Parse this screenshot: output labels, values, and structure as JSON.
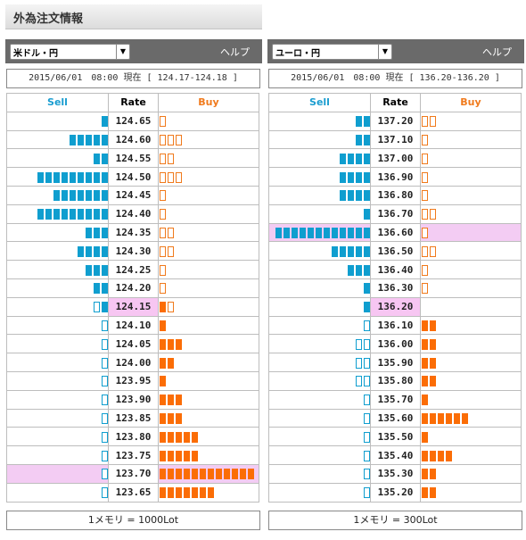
{
  "page_title": "外為注文情報",
  "panels": [
    {
      "pair": "米ドル・円",
      "help": "ヘルプ",
      "status": "2015/06/01　08:00 現在 [ 124.17-124.18 ]",
      "header": {
        "sell": "Sell",
        "rate": "Rate",
        "buy": "Buy"
      },
      "footer": "1メモリ = 1000Lot",
      "current_rate": "124.15",
      "rows": [
        {
          "rate": "124.65",
          "sell": 1,
          "sell_type": "order",
          "buy": 1,
          "buy_type": "order"
        },
        {
          "rate": "124.60",
          "sell": 5,
          "sell_type": "order",
          "buy": 3,
          "buy_type": "order"
        },
        {
          "rate": "124.55",
          "sell": 2,
          "sell_type": "order",
          "buy": 2,
          "buy_type": "order"
        },
        {
          "rate": "124.50",
          "sell": 9,
          "sell_type": "order",
          "buy": 3,
          "buy_type": "order"
        },
        {
          "rate": "124.45",
          "sell": 7,
          "sell_type": "order",
          "buy": 1,
          "buy_type": "order"
        },
        {
          "rate": "124.40",
          "sell": 9,
          "sell_type": "order",
          "buy": 1,
          "buy_type": "order"
        },
        {
          "rate": "124.35",
          "sell": 3,
          "sell_type": "order",
          "buy": 2,
          "buy_type": "order"
        },
        {
          "rate": "124.30",
          "sell": 4,
          "sell_type": "order",
          "buy": 2,
          "buy_type": "order"
        },
        {
          "rate": "124.25",
          "sell": 3,
          "sell_type": "order",
          "buy": 1,
          "buy_type": "order"
        },
        {
          "rate": "124.20",
          "sell": 2,
          "sell_type": "order",
          "buy": 1,
          "buy_type": "order"
        },
        {
          "rate": "124.15",
          "sell": 2,
          "sell_type": "mixed",
          "buy": 2,
          "buy_type": "mixed"
        },
        {
          "rate": "124.10",
          "sell": 1,
          "sell_type": "stop",
          "buy": 1,
          "buy_type": "stop"
        },
        {
          "rate": "124.05",
          "sell": 1,
          "sell_type": "stop",
          "buy": 3,
          "buy_type": "stop"
        },
        {
          "rate": "124.00",
          "sell": 1,
          "sell_type": "stop",
          "buy": 2,
          "buy_type": "stop"
        },
        {
          "rate": "123.95",
          "sell": 1,
          "sell_type": "stop",
          "buy": 1,
          "buy_type": "stop"
        },
        {
          "rate": "123.90",
          "sell": 1,
          "sell_type": "stop",
          "buy": 3,
          "buy_type": "stop"
        },
        {
          "rate": "123.85",
          "sell": 1,
          "sell_type": "stop",
          "buy": 3,
          "buy_type": "stop"
        },
        {
          "rate": "123.80",
          "sell": 1,
          "sell_type": "stop",
          "buy": 5,
          "buy_type": "stop"
        },
        {
          "rate": "123.75",
          "sell": 1,
          "sell_type": "stop",
          "buy": 5,
          "buy_type": "stop"
        },
        {
          "rate": "123.70",
          "sell": 1,
          "sell_type": "stop",
          "buy": 12,
          "buy_type": "stop",
          "highlight": true
        },
        {
          "rate": "123.65",
          "sell": 1,
          "sell_type": "stop",
          "buy": 7,
          "buy_type": "stop"
        }
      ]
    },
    {
      "pair": "ユーロ・円",
      "help": "ヘルプ",
      "status": "2015/06/01　08:00 現在 [ 136.20-136.20 ]",
      "header": {
        "sell": "Sell",
        "rate": "Rate",
        "buy": "Buy"
      },
      "footer": "1メモリ = 300Lot",
      "current_rate": "136.20",
      "rows": [
        {
          "rate": "137.20",
          "sell": 2,
          "sell_type": "order",
          "buy": 2,
          "buy_type": "order"
        },
        {
          "rate": "137.10",
          "sell": 2,
          "sell_type": "order",
          "buy": 1,
          "buy_type": "order"
        },
        {
          "rate": "137.00",
          "sell": 4,
          "sell_type": "order",
          "buy": 1,
          "buy_type": "order"
        },
        {
          "rate": "136.90",
          "sell": 4,
          "sell_type": "order",
          "buy": 1,
          "buy_type": "order"
        },
        {
          "rate": "136.80",
          "sell": 4,
          "sell_type": "order",
          "buy": 1,
          "buy_type": "order"
        },
        {
          "rate": "136.70",
          "sell": 1,
          "sell_type": "order",
          "buy": 2,
          "buy_type": "order"
        },
        {
          "rate": "136.60",
          "sell": 12,
          "sell_type": "order",
          "buy": 1,
          "buy_type": "order",
          "highlight": true
        },
        {
          "rate": "136.50",
          "sell": 5,
          "sell_type": "order",
          "buy": 2,
          "buy_type": "order"
        },
        {
          "rate": "136.40",
          "sell": 3,
          "sell_type": "order",
          "buy": 1,
          "buy_type": "order"
        },
        {
          "rate": "136.30",
          "sell": 1,
          "sell_type": "order",
          "buy": 1,
          "buy_type": "order"
        },
        {
          "rate": "136.20",
          "sell": 1,
          "sell_type": "order",
          "buy": 0,
          "buy_type": "stop"
        },
        {
          "rate": "136.10",
          "sell": 1,
          "sell_type": "stop",
          "buy": 2,
          "buy_type": "stop"
        },
        {
          "rate": "136.00",
          "sell": 2,
          "sell_type": "stop",
          "buy": 2,
          "buy_type": "stop"
        },
        {
          "rate": "135.90",
          "sell": 2,
          "sell_type": "stop",
          "buy": 2,
          "buy_type": "stop"
        },
        {
          "rate": "135.80",
          "sell": 2,
          "sell_type": "stop",
          "buy": 2,
          "buy_type": "stop"
        },
        {
          "rate": "135.70",
          "sell": 1,
          "sell_type": "stop",
          "buy": 1,
          "buy_type": "stop"
        },
        {
          "rate": "135.60",
          "sell": 1,
          "sell_type": "stop",
          "buy": 6,
          "buy_type": "stop"
        },
        {
          "rate": "135.50",
          "sell": 1,
          "sell_type": "stop",
          "buy": 1,
          "buy_type": "stop"
        },
        {
          "rate": "135.40",
          "sell": 1,
          "sell_type": "stop",
          "buy": 4,
          "buy_type": "stop"
        },
        {
          "rate": "135.30",
          "sell": 1,
          "sell_type": "stop",
          "buy": 2,
          "buy_type": "stop"
        },
        {
          "rate": "135.20",
          "sell": 1,
          "sell_type": "stop",
          "buy": 2,
          "buy_type": "stop"
        }
      ]
    }
  ],
  "colors": {
    "sell": "#0f9ecf",
    "buy": "#fb6d06",
    "current_rate_bg": "#f7c6f2"
  }
}
